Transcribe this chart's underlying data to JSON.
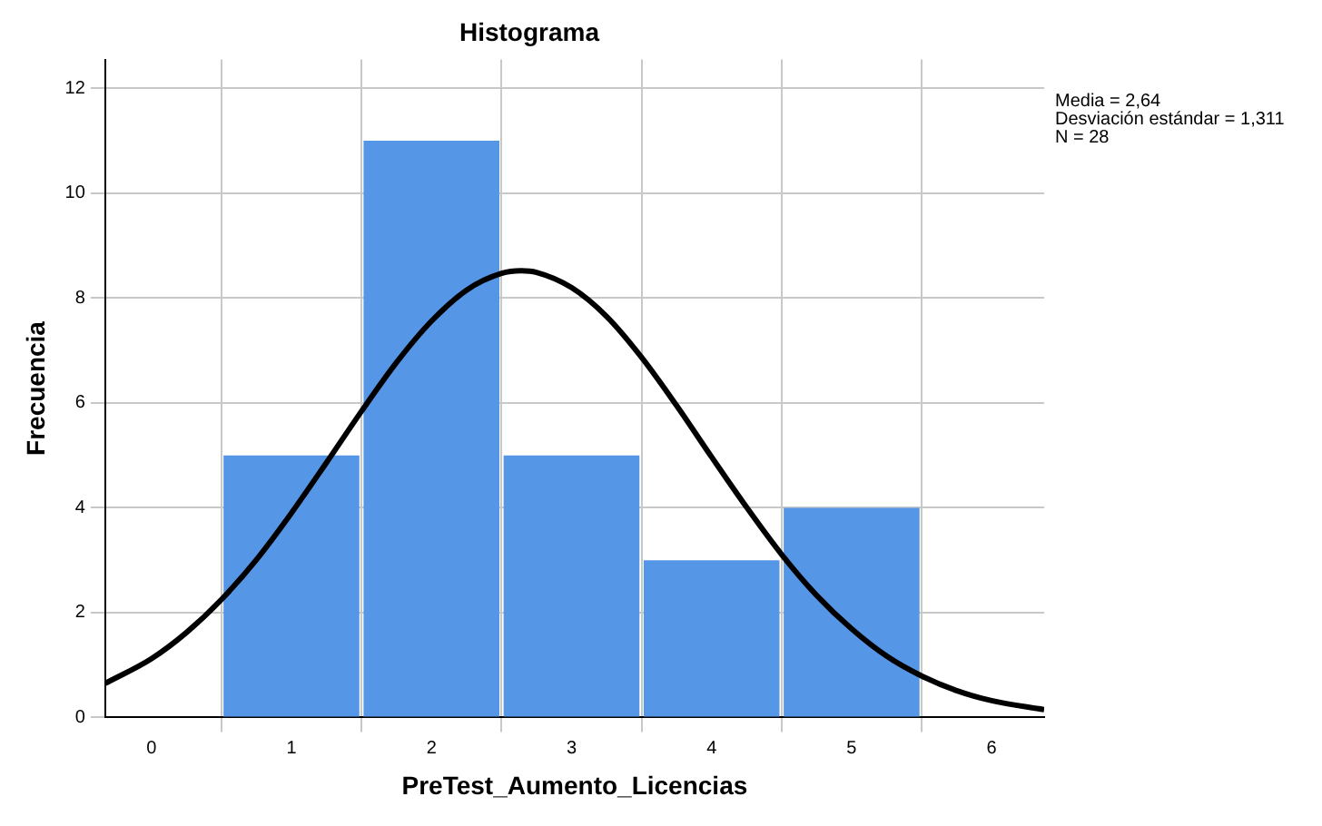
{
  "chart_data": {
    "type": "histogram",
    "title": "Histograma",
    "xlabel": "PreTest_Aumento_Licencias",
    "ylabel": "Frecuencia",
    "bins": [
      0.5,
      1.5,
      2.5,
      3.5,
      4.5,
      5.5
    ],
    "values": [
      5,
      11,
      5,
      3,
      4
    ],
    "color": "#5596e6",
    "series": [
      {
        "type": "line",
        "color": "#000000",
        "x": [
          -0.33,
          0,
          0.25,
          0.5,
          0.75,
          1,
          1.25,
          1.5,
          1.75,
          2,
          2.25,
          2.5,
          2.64,
          2.75,
          3,
          3.25,
          3.5,
          3.75,
          4,
          4.25,
          4.5,
          4.75,
          5,
          5.25,
          5.5,
          5.75,
          6,
          6.375
        ],
        "values": [
          0.65,
          1.12,
          1.62,
          2.25,
          3.01,
          3.9,
          4.86,
          5.84,
          6.77,
          7.56,
          8.15,
          8.47,
          8.52,
          8.49,
          8.2,
          7.65,
          6.87,
          5.95,
          4.97,
          4.01,
          3.11,
          2.33,
          1.69,
          1.17,
          0.79,
          0.51,
          0.32,
          0.15
        ]
      }
    ],
    "xlim": [
      -0.33,
      6.375
    ],
    "xticks": [
      0,
      1,
      2,
      3,
      4,
      5,
      6
    ],
    "ylim": [
      0,
      12.55
    ],
    "yticks": [
      0,
      2,
      4,
      6,
      8,
      10,
      12
    ],
    "grid": true,
    "legend": false,
    "annotations": [
      "Media = 2,64",
      "Desviación estándar = 1,311",
      "N = 28"
    ]
  }
}
